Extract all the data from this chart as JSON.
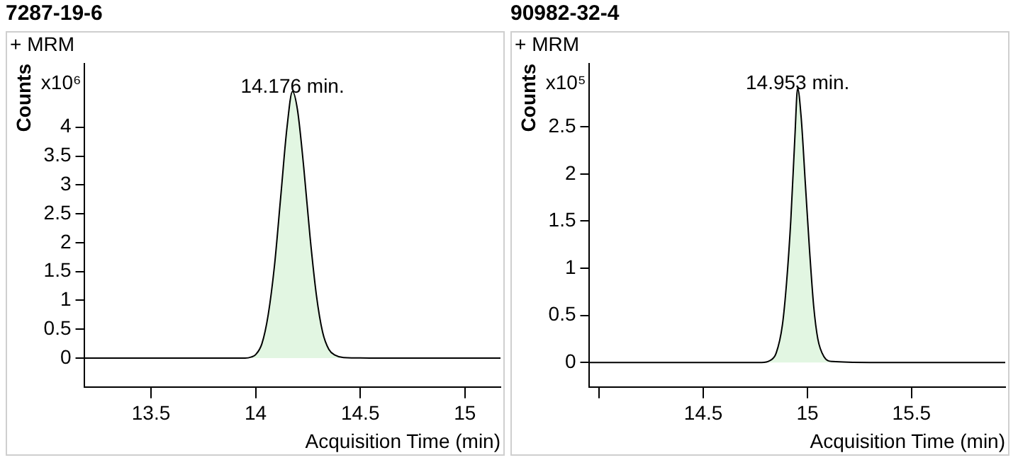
{
  "chart_data": [
    {
      "type": "area",
      "title": "7287-19-6",
      "xlabel": "Acquisition Time (min)",
      "ylabel": "Counts",
      "annotations": [
        "+ MRM",
        "x10⁶",
        {
          "text": "14.176 min.",
          "x": 14.176,
          "y": 4.62
        }
      ],
      "series": [
        {
          "color": "#000000",
          "x": [
            13.18,
            13.95,
            13.98,
            14.0,
            14.03,
            14.06,
            14.09,
            14.12,
            14.15,
            14.176,
            14.2,
            14.23,
            14.26,
            14.29,
            14.32,
            14.35,
            14.38,
            14.42,
            14.6,
            15.17
          ],
          "values": [
            0,
            0,
            0.02,
            0.06,
            0.25,
            0.75,
            1.6,
            2.8,
            4.0,
            4.62,
            4.3,
            3.3,
            2.1,
            1.1,
            0.45,
            0.15,
            0.05,
            0.01,
            0,
            0
          ]
        }
      ],
      "xlim": [
        13.18,
        15.17
      ],
      "xticks": [
        13.5,
        14,
        14.5,
        15
      ],
      "ylim": [
        -0.5,
        5.1
      ],
      "yticks": [
        0,
        0.5,
        1,
        1.5,
        2,
        2.5,
        3,
        3.5,
        4
      ],
      "grid": false,
      "legend": false
    },
    {
      "type": "area",
      "title": "90982-32-4",
      "xlabel": "Acquisition Time (min)",
      "ylabel": "Counts",
      "annotations": [
        "+ MRM",
        "x10⁵",
        {
          "text": "14.953 min.",
          "x": 14.953,
          "y": 2.91
        }
      ],
      "series": [
        {
          "color": "#000000",
          "x": [
            13.95,
            14.78,
            14.82,
            14.85,
            14.88,
            14.9,
            14.92,
            14.94,
            14.953,
            14.97,
            14.99,
            15.01,
            15.03,
            15.05,
            15.08,
            15.12,
            15.3,
            15.95
          ],
          "values": [
            0,
            0,
            0.02,
            0.1,
            0.4,
            0.85,
            1.5,
            2.4,
            2.91,
            2.6,
            1.9,
            1.2,
            0.6,
            0.25,
            0.06,
            0.01,
            0,
            0
          ]
        }
      ],
      "xlim": [
        13.95,
        15.95
      ],
      "xticks": [
        {
          "value": 14,
          "label": null
        },
        14.5,
        15,
        15.5
      ],
      "ylim": [
        -0.26,
        3.17
      ],
      "yticks": [
        0,
        0.5,
        1,
        1.5,
        2,
        2.5
      ],
      "grid": false,
      "legend": false
    }
  ]
}
